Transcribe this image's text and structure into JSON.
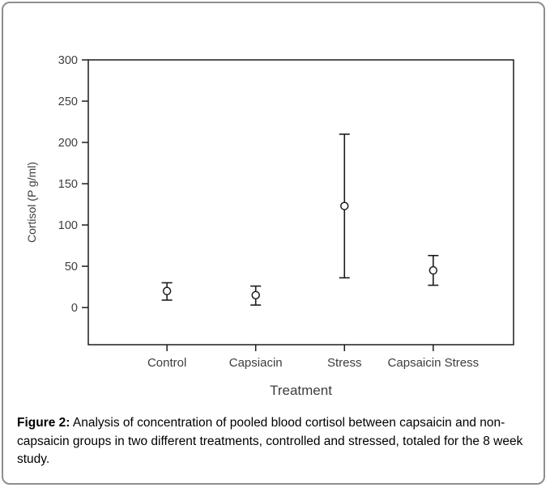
{
  "panel": {
    "background": "#ffffff",
    "border_color": "#8e8e8e"
  },
  "caption": {
    "label": "Figure 2:",
    "text": "Analysis of concentration of pooled blood cortisol between capsaicin and non-capsaicin groups in two different treatments, controlled and stressed, totaled for the 8 week study."
  },
  "chart_data": {
    "type": "scatter",
    "subtype": "means-with-error-bars",
    "title": "",
    "xlabel": "Treatment",
    "ylabel": "Cortisol (P g/ml)",
    "categories": [
      "Control",
      "Capsiacin",
      "Stress",
      "Capsaicin Stress"
    ],
    "series": [
      {
        "mean": [
          20,
          15,
          123,
          45
        ],
        "upper": [
          30,
          26,
          210,
          63
        ],
        "lower": [
          9,
          3,
          36,
          27
        ]
      }
    ],
    "ylim": [
      -45,
      300
    ],
    "yticks": [
      300,
      250,
      200,
      150,
      100,
      50,
      0
    ],
    "grid": false,
    "legend": false,
    "marker": "open-circle",
    "colors": {
      "line": "#1c1c1c",
      "tick_text": "#3d3d3d",
      "marker_fill": "#ffffff"
    }
  }
}
